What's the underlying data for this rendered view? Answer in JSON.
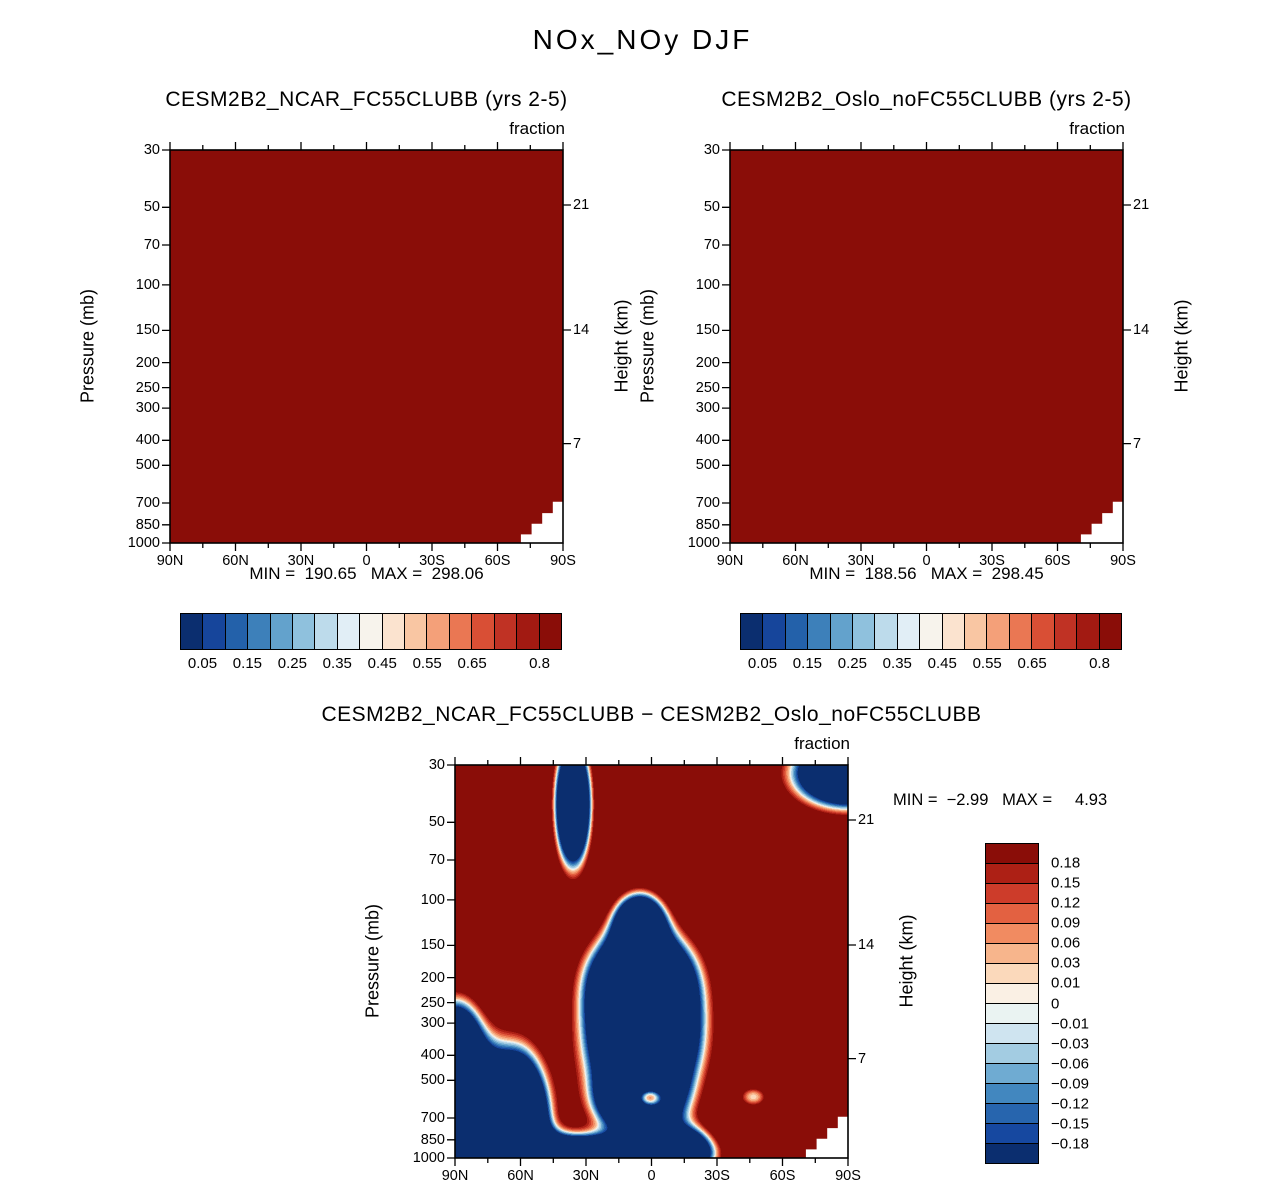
{
  "figure": {
    "title": "NOx_NOy DJF"
  },
  "axes": {
    "pressure_label": "Pressure (mb)",
    "height_label": "Height (km)",
    "units_label": "fraction",
    "pressure_ticks": [
      {
        "label": "30",
        "p": 30
      },
      {
        "label": "50",
        "p": 50
      },
      {
        "label": "70",
        "p": 70
      },
      {
        "label": "100",
        "p": 100
      },
      {
        "label": "150",
        "p": 150
      },
      {
        "label": "200",
        "p": 200
      },
      {
        "label": "250",
        "p": 250
      },
      {
        "label": "300",
        "p": 300
      },
      {
        "label": "400",
        "p": 400
      },
      {
        "label": "500",
        "p": 500
      },
      {
        "label": "700",
        "p": 700
      },
      {
        "label": "850",
        "p": 850
      },
      {
        "label": "1000",
        "p": 1000
      }
    ],
    "height_ticks": [
      {
        "label": "21",
        "v": 0.14
      },
      {
        "label": "14",
        "v": 0.458
      },
      {
        "label": "7",
        "v": 0.747
      }
    ],
    "lat_ticks": [
      {
        "label": "90N",
        "u": 0
      },
      {
        "label": "60N",
        "u": 0.16667
      },
      {
        "label": "30N",
        "u": 0.33333
      },
      {
        "label": "0",
        "u": 0.5
      },
      {
        "label": "30S",
        "u": 0.66667
      },
      {
        "label": "60S",
        "u": 0.83333
      },
      {
        "label": "90S",
        "u": 1
      }
    ]
  },
  "panels": [
    {
      "id": "ncar",
      "title": "CESM2B2_NCAR_FC55CLUBB (yrs 2-5)",
      "minmax": "MIN =  190.65   MAX =  298.06"
    },
    {
      "id": "oslo",
      "title": "CESM2B2_Oslo_noFC55CLUBB (yrs 2-5)",
      "minmax": "MIN =  188.56   MAX =  298.45"
    },
    {
      "id": "diff",
      "title": "CESM2B2_NCAR_FC55CLUBB − CESM2B2_Oslo_noFC55CLUBB",
      "minmax": "MIN =  −2.99   MAX =     4.93"
    }
  ],
  "colorbar_fraction": {
    "labels": [
      "0.05",
      "0.15",
      "0.25",
      "0.35",
      "0.45",
      "0.55",
      "0.65",
      "0.8"
    ],
    "label_boundaries": [
      1,
      3,
      5,
      7,
      9,
      11,
      13,
      16
    ],
    "colors": [
      "#0b2e6f",
      "#16459b",
      "#2361aa",
      "#3d80ba",
      "#63a2cc",
      "#8fc1dd",
      "#bddbeb",
      "#e1eef6",
      "#f7f3ec",
      "#fbe3cf",
      "#f9c6a3",
      "#f4a079",
      "#ea7753",
      "#d94f35",
      "#c03224",
      "#a21a12",
      "#8a0d08"
    ]
  },
  "colorbar_diff": {
    "labels": [
      "0.18",
      "0.15",
      "0.12",
      "0.09",
      "0.06",
      "0.03",
      "0.01",
      "0",
      "−0.01",
      "−0.03",
      "−0.06",
      "−0.09",
      "−0.12",
      "−0.15",
      "−0.18"
    ]
  },
  "chart_data": [
    {
      "type": "heatmap",
      "subtype": "filled-contour latitude-pressure section",
      "title": "CESM2B2_NCAR_FC55CLUBB (yrs 2-5)",
      "variable": "NOx_NOy",
      "season": "DJF",
      "units": "fraction",
      "x_axis": "latitude 90N to 90S",
      "y_axis": "pressure 30 to 1000 mb (log scale)",
      "y2_axis": "height km ticks 21, 14, 7",
      "min": 190.65,
      "max": 298.06,
      "levels": [
        0.05,
        0.1,
        0.15,
        0.2,
        0.25,
        0.3,
        0.35,
        0.4,
        0.45,
        0.5,
        0.55,
        0.6,
        0.65,
        0.7,
        0.75,
        0.8
      ],
      "solid_color": "#8a0d08",
      "note": "entire displayed field exceeds top level 0.8 so panel is uniform darkest red; white terrain cutout near South Pole below ~700 mb"
    },
    {
      "type": "heatmap",
      "subtype": "filled-contour latitude-pressure section",
      "title": "CESM2B2_Oslo_noFC55CLUBB (yrs 2-5)",
      "variable": "NOx_NOy",
      "season": "DJF",
      "units": "fraction",
      "x_axis": "latitude 90N to 90S",
      "y_axis": "pressure 30 to 1000 mb (log scale)",
      "y2_axis": "height km ticks 21, 14, 7",
      "min": 188.56,
      "max": 298.45,
      "levels": [
        0.05,
        0.1,
        0.15,
        0.2,
        0.25,
        0.3,
        0.35,
        0.4,
        0.45,
        0.5,
        0.55,
        0.6,
        0.65,
        0.7,
        0.75,
        0.8
      ],
      "solid_color": "#8a0d08",
      "note": "entire displayed field exceeds top level 0.8 so panel is uniform darkest red; white terrain cutout near South Pole below ~700 mb"
    },
    {
      "type": "heatmap",
      "subtype": "filled-contour difference section",
      "title": "CESM2B2_NCAR_FC55CLUBB − CESM2B2_Oslo_noFC55CLUBB",
      "units": "fraction",
      "min": -2.99,
      "max": 4.93,
      "levels": [
        -0.18,
        -0.15,
        -0.12,
        -0.09,
        -0.06,
        -0.03,
        -0.01,
        0,
        0.01,
        0.03,
        0.06,
        0.09,
        0.12,
        0.15,
        0.18
      ],
      "band_colors": [
        "#0b2e6f",
        "#1648a0",
        "#2765ae",
        "#4287bf",
        "#6fabd2",
        "#a3cce2",
        "#cfe4f0",
        "#eaf3f2",
        "#faf0e4",
        "#fbd9bb",
        "#f7b58c",
        "#f18b61",
        "#e36141",
        "#cd3c2a",
        "#ad2015",
        "#8a0d08"
      ],
      "field_model": {
        "comment": "approximate gaussian reconstruction of depicted anomaly field; blobs = [u_center, v_center, sigma_u, sigma_v, amplitude]; u: 0=90N..1=90S, v: 0=30mb..1=1000mb (log-p)",
        "base": 0.55,
        "blobs": [
          [
            0.3,
            0.1,
            0.03,
            0.105,
            -1.9
          ],
          [
            1.0,
            0.02,
            0.095,
            0.06,
            -1.8
          ],
          [
            0.47,
            0.4,
            0.042,
            0.05,
            -1.5
          ],
          [
            0.475,
            0.55,
            0.085,
            0.085,
            -2.2
          ],
          [
            0.48,
            0.71,
            0.09,
            0.1,
            -2.2
          ],
          [
            0.47,
            0.86,
            0.07,
            0.055,
            -1.6
          ],
          [
            0.05,
            0.9,
            0.1,
            0.12,
            -2.0
          ],
          [
            0.0,
            0.7,
            0.045,
            0.075,
            -1.2
          ],
          [
            0.2,
            1.0,
            0.155,
            0.038,
            -1.5
          ],
          [
            0.44,
            1.0,
            0.12,
            0.033,
            -1.4
          ],
          [
            0.165,
            0.95,
            0.042,
            0.12,
            -1.8
          ],
          [
            0.58,
            0.975,
            0.05,
            0.038,
            -1.2
          ],
          [
            0.76,
            0.845,
            0.03,
            0.022,
            -0.53
          ],
          [
            0.49,
            0.845,
            0.036,
            0.028,
            1.85
          ]
        ]
      },
      "note": "dark red background (> 0.18) with negative (blue) regions: stratospheric column near 35N, upper-level region near South Pole, large tropical mid/lower troposphere region, high-northern-latitude lower troposphere, and a near-surface band; small warm/pale spots near 0 at ~600 mb and ~45S at ~550 mb; white terrain cutout near South Pole"
    }
  ]
}
